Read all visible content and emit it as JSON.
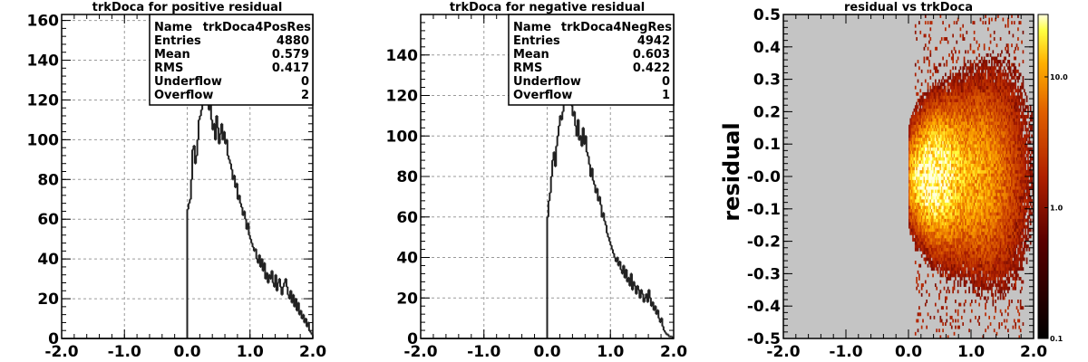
{
  "chart_data": [
    {
      "type": "histogram",
      "title": "trkDoca for positive residual",
      "xlim": [
        -2.0,
        2.0
      ],
      "ylim": [
        0,
        163
      ],
      "xticks": [
        "-2.0",
        "-1.0",
        "0.0",
        "1.0",
        "2.0"
      ],
      "yticks": [
        "0",
        "20",
        "40",
        "60",
        "80",
        "100",
        "120",
        "140",
        "160"
      ],
      "grid": true,
      "stats": {
        "name_label": "Name",
        "name": "trkDoca4PosRes",
        "rows": [
          {
            "label": "Entries",
            "value": "4880"
          },
          {
            "label": "Mean",
            "value": "0.579"
          },
          {
            "label": "RMS",
            "value": "0.417"
          },
          {
            "label": "Underflow",
            "value": "0"
          },
          {
            "label": "Overflow",
            "value": "2"
          }
        ]
      },
      "bin_start": 0.0,
      "bin_width": 0.02,
      "values": [
        65,
        68,
        70,
        80,
        95,
        97,
        88,
        92,
        100,
        110,
        112,
        115,
        120,
        118,
        125,
        128,
        122,
        115,
        120,
        110,
        105,
        108,
        100,
        112,
        106,
        98,
        103,
        108,
        100,
        104,
        98,
        100,
        92,
        90,
        88,
        85,
        80,
        82,
        76,
        78,
        70,
        72,
        68,
        66,
        62,
        64,
        60,
        55,
        58,
        52,
        50,
        48,
        46,
        44,
        45,
        40,
        38,
        42,
        36,
        40,
        34,
        38,
        30,
        33,
        28,
        32,
        30,
        34,
        28,
        26,
        32,
        24,
        28,
        30,
        26,
        22,
        26,
        28,
        30,
        26,
        22,
        20,
        24,
        18,
        22,
        16,
        20,
        14,
        18,
        12,
        14,
        10,
        12,
        8,
        10,
        6,
        8,
        4,
        3,
        2
      ]
    },
    {
      "type": "histogram",
      "title": "trkDoca for negative residual",
      "xlim": [
        -2.0,
        2.0
      ],
      "ylim": [
        0,
        160
      ],
      "xticks": [
        "-2.0",
        "-1.0",
        "0.0",
        "1.0",
        "2.0"
      ],
      "yticks": [
        "0",
        "20",
        "40",
        "60",
        "80",
        "100",
        "120",
        "140"
      ],
      "grid": true,
      "stats": {
        "name_label": "Name",
        "name": "trkDoca4NegRes",
        "rows": [
          {
            "label": "Entries",
            "value": "4942"
          },
          {
            "label": "Mean",
            "value": "0.603"
          },
          {
            "label": "RMS",
            "value": "0.422"
          },
          {
            "label": "Underflow",
            "value": "0"
          },
          {
            "label": "Overflow",
            "value": "1"
          }
        ]
      },
      "bin_start": 0.0,
      "bin_width": 0.02,
      "values": [
        60,
        68,
        72,
        80,
        88,
        92,
        85,
        95,
        100,
        105,
        110,
        108,
        112,
        118,
        125,
        122,
        120,
        128,
        118,
        115,
        110,
        112,
        105,
        100,
        108,
        98,
        100,
        95,
        104,
        96,
        100,
        92,
        90,
        86,
        80,
        84,
        78,
        76,
        72,
        74,
        68,
        70,
        66,
        60,
        62,
        58,
        56,
        52,
        50,
        48,
        46,
        44,
        42,
        40,
        38,
        40,
        36,
        38,
        34,
        32,
        36,
        30,
        34,
        28,
        30,
        26,
        32,
        24,
        28,
        26,
        22,
        26,
        24,
        20,
        24,
        22,
        18,
        20,
        22,
        18,
        24,
        20,
        16,
        18,
        14,
        16,
        12,
        14,
        10,
        8,
        10,
        6,
        4,
        3,
        2,
        2,
        1,
        1,
        1,
        0
      ]
    },
    {
      "type": "heatmap",
      "title": "residual vs trkDoca",
      "ylabel": "residual",
      "xlim": [
        -2.0,
        2.0
      ],
      "ylim": [
        -0.5,
        0.5
      ],
      "xticks": [
        "-2.0",
        "-1.0",
        "0.0",
        "1.0",
        "2.0"
      ],
      "yticks": [
        "-0.5",
        "-0.4",
        "-0.3",
        "-0.2",
        "-0.1",
        "-0.0",
        "0.1",
        "0.2",
        "0.3",
        "0.4",
        "0.5"
      ],
      "grid": false,
      "background": "#c4c4c4",
      "colorbar": {
        "scale": "log",
        "labels": [
          "0.1",
          "1.0",
          "10.0"
        ],
        "range": [
          0.1,
          30
        ]
      },
      "bins": {
        "x_min": 0.0,
        "x_max": 2.0,
        "nx": 100,
        "y_min": -0.5,
        "y_max": 0.5,
        "ny": 100
      }
    }
  ]
}
